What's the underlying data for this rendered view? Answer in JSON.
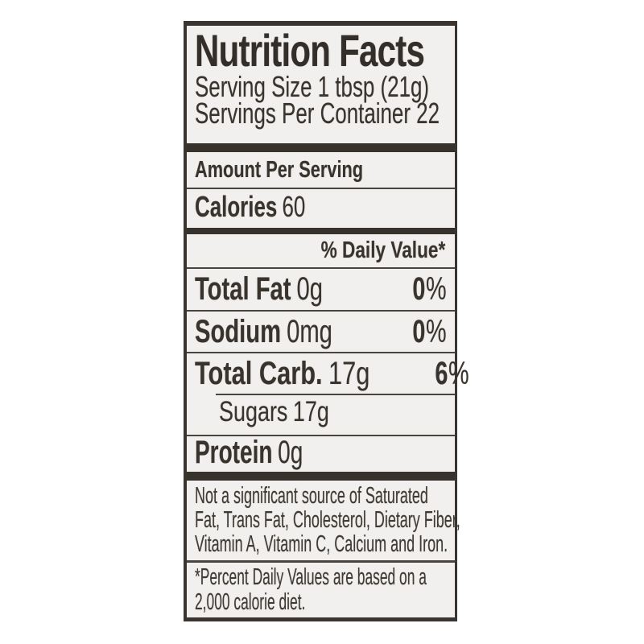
{
  "label": {
    "title": "Nutrition Facts",
    "serving_size": "Serving Size 1 tbsp (21g)",
    "servings_per_container": "Servings Per Container 22",
    "amount_per_serving": "Amount Per Serving",
    "calories": {
      "label": "Calories",
      "value": "60"
    },
    "daily_value_header": "% Daily Value*",
    "rows": [
      {
        "name": "Total Fat",
        "amount": "0g",
        "dv_value": "0",
        "percent_sign": "%"
      },
      {
        "name": "Sodium",
        "amount": "0mg",
        "dv_value": "0",
        "percent_sign": "%"
      },
      {
        "name": "Total Carb.",
        "amount": "17g",
        "dv_value": "6",
        "percent_sign": "%"
      },
      {
        "name": "Sugars",
        "amount": "17g"
      },
      {
        "name": "Protein",
        "amount": "0g"
      }
    ],
    "not_significant_lines": [
      "Not a significant source of Saturated",
      "Fat, Trans Fat, Cholesterol, Dietary Fiber,",
      "Vitamin A, Vitamin C, Calcium and Iron."
    ],
    "footnote_lines": [
      "*Percent Daily Values are based on a",
      "2,000 calorie diet."
    ],
    "colors": {
      "border": "#3b3531",
      "label_background": "#f2f0ee",
      "page_background": "#ffffff",
      "text": "#39332e"
    }
  }
}
